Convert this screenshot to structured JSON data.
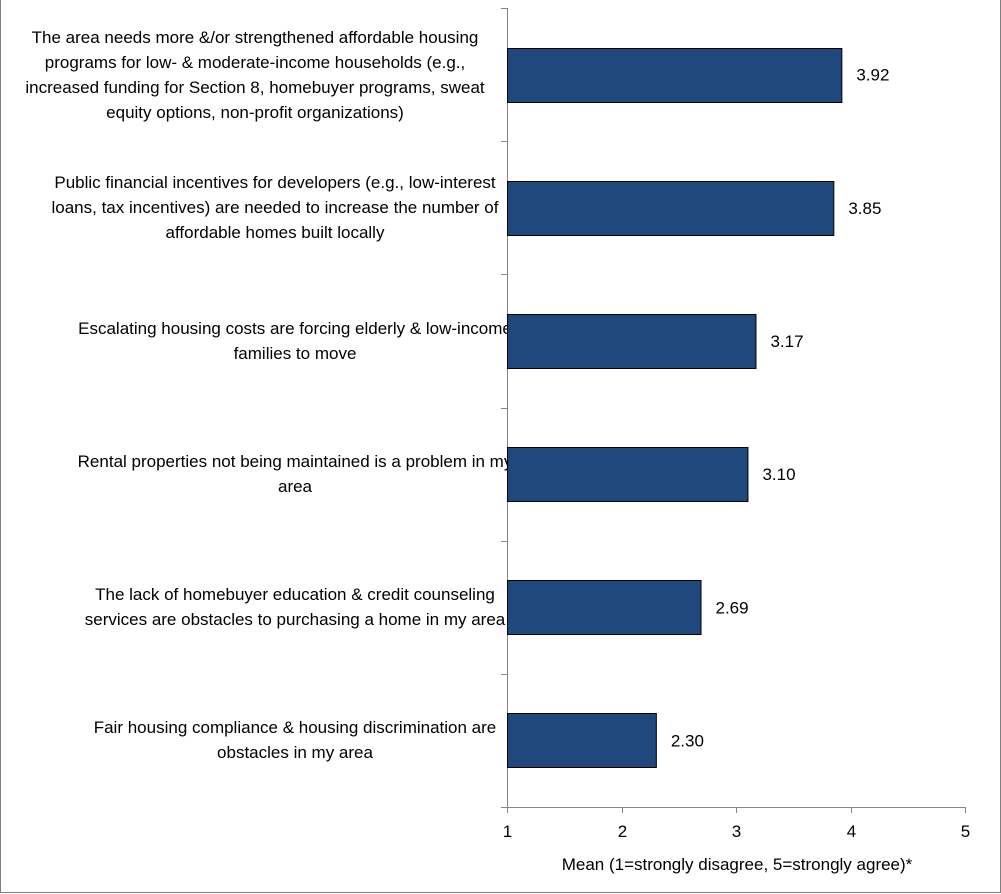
{
  "chart_data": {
    "type": "bar",
    "orientation": "horizontal",
    "categories": [
      "The area needs more &/or strengthened affordable housing programs for low- & moderate-income households (e.g., increased funding for Section 8, homebuyer programs, sweat equity options, non-profit organizations)",
      "Public financial incentives for developers (e.g., low-interest loans, tax incentives) are needed to increase the number of affordable homes built locally",
      "Escalating housing costs are forcing elderly & low-income families to move",
      "Rental properties not being maintained is a problem in my area",
      "The lack of homebuyer education & credit counseling services are obstacles to purchasing a home in my area",
      "Fair housing compliance & housing discrimination are obstacles in my area"
    ],
    "values": [
      3.92,
      3.85,
      3.17,
      3.1,
      2.69,
      2.3
    ],
    "value_labels": [
      "3.92",
      "3.85",
      "3.17",
      "3.10",
      "2.69",
      "2.30"
    ],
    "xlabel": "Mean (1=strongly disagree, 5=strongly agree)*",
    "xlim": [
      1,
      5
    ],
    "xticks": [
      "1",
      "2",
      "3",
      "4",
      "5"
    ],
    "bar_color": "#1f497d",
    "bar_border_color": "#000000",
    "grid": false
  }
}
